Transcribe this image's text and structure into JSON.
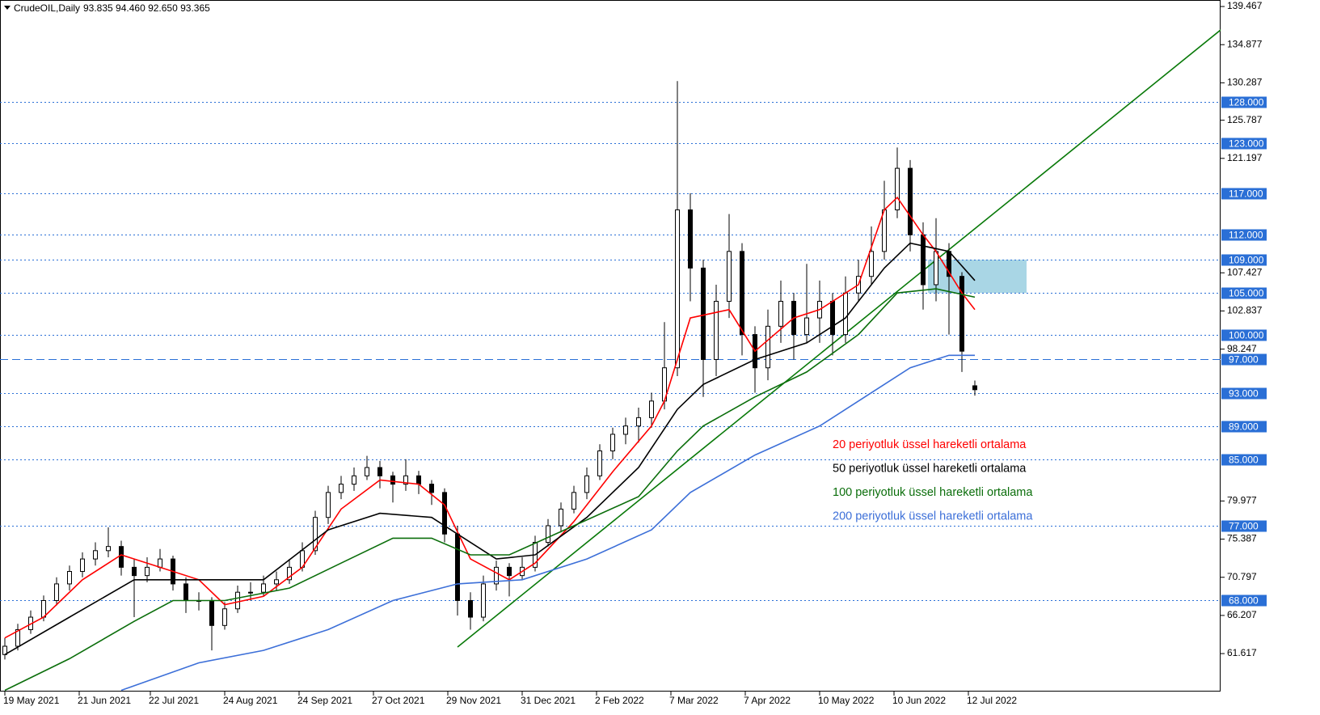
{
  "chart_data": {
    "type": "candlestick",
    "title": "CrudeOIL,Daily",
    "header_values": "93.835 94.460 92.650 93.365",
    "xlim": [
      -1.5,
      376
    ],
    "ylim": [
      57.05,
      140.25
    ],
    "xticks": [
      {
        "value": 0,
        "label": "19 May 2021"
      },
      {
        "value": 23,
        "label": "21 Jun 2021"
      },
      {
        "value": 45,
        "label": "22 Jul 2021"
      },
      {
        "value": 68,
        "label": "24 Aug 2021"
      },
      {
        "value": 91,
        "label": "24 Sep 2021"
      },
      {
        "value": 114,
        "label": "27 Oct 2021"
      },
      {
        "value": 137,
        "label": "29 Nov 2021"
      },
      {
        "value": 160,
        "label": "31 Dec 2021"
      },
      {
        "value": 183,
        "label": "2 Feb 2022"
      },
      {
        "value": 206,
        "label": "7 Mar 2022"
      },
      {
        "value": 229,
        "label": "7 Apr 2022"
      },
      {
        "value": 252,
        "label": "10 May 2022"
      },
      {
        "value": 275,
        "label": "10 Jun 2022"
      },
      {
        "value": 298,
        "label": "12 Jul 2022"
      }
    ],
    "yticks": [
      139.467,
      134.877,
      130.287,
      125.787,
      121.197,
      107.427,
      102.837,
      98.247,
      79.977,
      75.387,
      70.797,
      66.207,
      61.617
    ],
    "levels": [
      {
        "value": 128,
        "label": "128.000",
        "style": "dotted"
      },
      {
        "value": 123,
        "label": "123.000",
        "style": "dotted"
      },
      {
        "value": 117,
        "label": "117.000",
        "style": "dotted"
      },
      {
        "value": 112,
        "label": "112.000",
        "style": "dotted"
      },
      {
        "value": 109,
        "label": "109.000",
        "style": "dotted"
      },
      {
        "value": 105,
        "label": "105.000",
        "style": "dotted"
      },
      {
        "value": 100,
        "label": "100.000",
        "style": "dotted"
      },
      {
        "value": 97,
        "label": "97.000",
        "style": "dashed"
      },
      {
        "value": 93,
        "label": "93.000",
        "style": "dotted"
      },
      {
        "value": 89,
        "label": "89.000",
        "style": "dotted"
      },
      {
        "value": 85,
        "label": "85.000",
        "style": "dotted"
      },
      {
        "value": 77,
        "label": "77.000",
        "style": "dotted"
      },
      {
        "value": 68,
        "label": "68.000",
        "style": "dotted"
      }
    ],
    "level_color": "#2a6fd6",
    "trendline": {
      "color": "#0a7a0a",
      "x": [
        140,
        376.5
      ],
      "values": [
        62.4,
        136.8
      ]
    },
    "zone": {
      "color": "#a9d6e5",
      "x": [
        285.5,
        316
      ],
      "values": [
        109,
        105
      ]
    },
    "series": [
      {
        "name": "CrudeOIL,Daily",
        "type": "candlestick",
        "color": "#000000",
        "x": [
          0,
          4,
          8,
          12,
          16,
          20,
          24,
          28,
          32,
          36,
          40,
          44,
          48,
          52,
          56,
          60,
          64,
          68,
          72,
          76,
          80,
          84,
          88,
          92,
          96,
          100,
          104,
          108,
          112,
          116,
          120,
          124,
          128,
          132,
          136,
          140,
          144,
          148,
          152,
          156,
          160,
          164,
          168,
          172,
          176,
          180,
          184,
          188,
          192,
          196,
          200,
          204,
          208,
          212,
          216,
          220,
          224,
          228,
          232,
          236,
          240,
          244,
          248,
          252,
          256,
          260,
          264,
          268,
          272,
          276,
          280,
          284,
          288,
          292,
          296,
          300
        ],
        "values": [
          [
            61.5,
            63.5,
            60.9,
            62.5
          ],
          [
            62.5,
            65.2,
            62.0,
            64.5
          ],
          [
            64.5,
            66.8,
            64.0,
            66.0
          ],
          [
            66.0,
            68.6,
            65.5,
            68.0
          ],
          [
            68.0,
            70.8,
            67.4,
            70.0
          ],
          [
            70.0,
            72.2,
            69.2,
            71.5
          ],
          [
            71.5,
            73.8,
            70.8,
            73.0
          ],
          [
            73.0,
            75.0,
            72.2,
            74.0
          ],
          [
            74.0,
            76.8,
            73.2,
            74.5
          ],
          [
            74.5,
            75.2,
            71.0,
            72.0
          ],
          [
            72.0,
            73.0,
            66.0,
            71.0
          ],
          [
            71.0,
            73.2,
            70.2,
            72.0
          ],
          [
            72.0,
            74.2,
            71.5,
            73.0
          ],
          [
            73.0,
            73.4,
            69.2,
            70.0
          ],
          [
            70.0,
            70.8,
            66.5,
            68.0
          ],
          [
            68.0,
            69.0,
            66.8,
            68.0
          ],
          [
            68.0,
            68.4,
            62.0,
            65.0
          ],
          [
            65.0,
            67.8,
            64.5,
            67.0
          ],
          [
            67.0,
            69.8,
            66.5,
            69.0
          ],
          [
            69.0,
            70.2,
            68.0,
            69.0
          ],
          [
            69.0,
            71.0,
            68.5,
            70.0
          ],
          [
            70.0,
            71.5,
            69.2,
            70.5
          ],
          [
            70.5,
            73.0,
            70.0,
            72.0
          ],
          [
            72.0,
            75.0,
            71.5,
            74.0
          ],
          [
            74.0,
            78.8,
            73.5,
            78.0
          ],
          [
            78.0,
            81.8,
            77.2,
            81.0
          ],
          [
            81.0,
            83.0,
            80.2,
            82.0
          ],
          [
            82.0,
            84.0,
            81.2,
            83.0
          ],
          [
            83.0,
            85.4,
            82.5,
            84.0
          ],
          [
            84.0,
            84.8,
            81.5,
            83.0
          ],
          [
            83.0,
            83.5,
            79.8,
            82.0
          ],
          [
            82.0,
            85.0,
            81.2,
            83.0
          ],
          [
            83.0,
            83.6,
            80.8,
            82.0
          ],
          [
            82.0,
            82.5,
            79.5,
            81.0
          ],
          [
            81.0,
            81.5,
            75.0,
            76.0
          ],
          [
            76.0,
            77.0,
            66.2,
            68.0
          ],
          [
            68.0,
            69.0,
            64.5,
            66.0
          ],
          [
            66.0,
            71.0,
            65.5,
            70.0
          ],
          [
            70.0,
            72.8,
            69.2,
            72.0
          ],
          [
            72.0,
            72.5,
            68.5,
            71.0
          ],
          [
            71.0,
            73.2,
            70.5,
            72.0
          ],
          [
            72.0,
            75.8,
            71.5,
            75.0
          ],
          [
            75.0,
            77.8,
            74.5,
            77.0
          ],
          [
            77.0,
            79.8,
            76.2,
            79.0
          ],
          [
            79.0,
            81.8,
            78.5,
            81.0
          ],
          [
            81.0,
            84.0,
            80.2,
            83.0
          ],
          [
            83.0,
            86.8,
            82.5,
            86.0
          ],
          [
            86.0,
            88.8,
            85.0,
            88.0
          ],
          [
            88.0,
            90.0,
            86.8,
            89.0
          ],
          [
            89.0,
            91.2,
            87.0,
            90.0
          ],
          [
            90.0,
            93.0,
            88.8,
            92.0
          ],
          [
            92.0,
            101.5,
            91.0,
            96.0
          ],
          [
            96.0,
            130.5,
            95.0,
            115.0
          ],
          [
            115.0,
            117.0,
            104.0,
            108.0
          ],
          [
            108.0,
            109.0,
            92.5,
            97.0
          ],
          [
            97.0,
            106.0,
            95.0,
            104.0
          ],
          [
            104.0,
            114.5,
            102.0,
            110.0
          ],
          [
            110.0,
            111.0,
            97.5,
            100.0
          ],
          [
            100.0,
            101.0,
            93.0,
            96.0
          ],
          [
            96.0,
            103.0,
            94.5,
            101.0
          ],
          [
            101.0,
            106.5,
            99.0,
            104.0
          ],
          [
            104.0,
            105.0,
            97.0,
            100.0
          ],
          [
            100.0,
            108.5,
            99.0,
            102.0
          ],
          [
            102.0,
            106.5,
            99.0,
            104.0
          ],
          [
            104.0,
            105.0,
            97.5,
            100.0
          ],
          [
            100.0,
            107.0,
            99.0,
            105.0
          ],
          [
            105.0,
            109.0,
            104.0,
            107.0
          ],
          [
            107.0,
            113.0,
            106.0,
            110.0
          ],
          [
            110.0,
            118.5,
            109.0,
            115.0
          ],
          [
            115.0,
            122.5,
            114.0,
            120.0
          ],
          [
            120.0,
            121.0,
            110.0,
            112.0
          ],
          [
            112.0,
            113.5,
            103.0,
            106.0
          ],
          [
            106.0,
            114.0,
            104.0,
            110.0
          ],
          [
            110.0,
            111.0,
            100.0,
            107.0
          ],
          [
            107.0,
            107.5,
            95.5,
            98.0
          ],
          [
            93.835,
            94.46,
            92.65,
            93.365
          ]
        ]
      },
      {
        "name": "20 periyotluk üssel hareketli ortalama",
        "type": "line",
        "color": "#ff0000",
        "x": [
          0,
          12,
          24,
          36,
          48,
          60,
          68,
          80,
          92,
          104,
          116,
          128,
          136,
          144,
          156,
          164,
          176,
          188,
          200,
          204,
          212,
          224,
          232,
          244,
          252,
          264,
          272,
          276,
          284,
          288,
          296,
          300
        ],
        "values": [
          63.5,
          66,
          70.5,
          73.5,
          72,
          70.5,
          67.5,
          68.5,
          72,
          79,
          82.5,
          82,
          79.5,
          73,
          70.5,
          72.5,
          77.5,
          83.5,
          89,
          92,
          102,
          103,
          98,
          102,
          103,
          106,
          115,
          116.5,
          112,
          110,
          105,
          103
        ]
      },
      {
        "name": "50 periyotluk üssel hareketli ortalama",
        "type": "line",
        "color": "#000000",
        "x": [
          0,
          20,
          40,
          60,
          80,
          100,
          116,
          132,
          140,
          152,
          164,
          180,
          196,
          208,
          216,
          232,
          248,
          260,
          272,
          280,
          292,
          300
        ],
        "values": [
          61.5,
          66,
          70.5,
          70.5,
          70.5,
          76.5,
          78.5,
          78,
          76,
          73,
          73.5,
          78,
          84,
          91,
          94,
          97,
          99,
          102,
          108,
          111,
          110,
          106.5
        ]
      },
      {
        "name": "100 periyotluk üssel hareketli ortalama",
        "type": "line",
        "color": "#0b6e0b",
        "x": [
          0,
          20,
          40,
          52,
          68,
          88,
          104,
          120,
          132,
          144,
          156,
          176,
          196,
          208,
          216,
          232,
          248,
          264,
          276,
          288,
          300
        ],
        "values": [
          57.2,
          61,
          65.5,
          68,
          68,
          69.5,
          72.5,
          75.5,
          75.5,
          73.5,
          73.5,
          77,
          80.5,
          86,
          89,
          92.5,
          95.5,
          100,
          105,
          105.5,
          104.5
        ]
      },
      {
        "name": "200 periyotluk üssel hareketli ortalama",
        "type": "line",
        "color": "#3c6fd8",
        "x": [
          36,
          60,
          80,
          100,
          120,
          140,
          160,
          180,
          200,
          212,
          232,
          252,
          268,
          280,
          292,
          300
        ],
        "values": [
          57.2,
          60.5,
          62,
          64.5,
          68,
          70,
          70.5,
          73,
          76.5,
          81,
          85.5,
          89,
          93,
          96,
          97.5,
          97.5
        ]
      }
    ]
  }
}
